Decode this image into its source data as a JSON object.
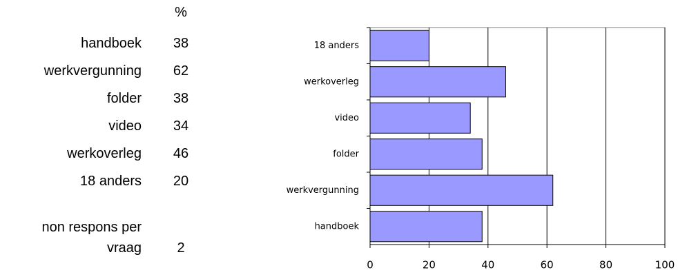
{
  "table": {
    "header": "%",
    "rows": [
      [
        "handboek",
        38
      ],
      [
        "werkvergunning",
        62
      ],
      [
        "folder",
        38
      ],
      [
        "video",
        34
      ],
      [
        "werkoverleg",
        46
      ],
      [
        "18 anders",
        20
      ]
    ],
    "footer": [
      "non respons per vraag",
      2
    ]
  },
  "chart_data": {
    "type": "hbar",
    "categories": [
      "18 anders",
      "werkoverleg",
      "video",
      "folder",
      "werkvergunning",
      "handboek"
    ],
    "values": [
      20,
      46,
      34,
      38,
      62,
      38
    ],
    "color": "#9999ff",
    "xlim": [
      0,
      100
    ],
    "xticks": [
      0,
      20,
      40,
      60,
      80,
      100
    ],
    "grid": true
  }
}
